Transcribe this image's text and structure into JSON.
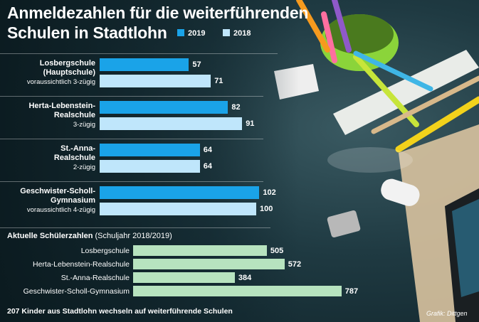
{
  "title_line1": "Anmeldezahlen für die weiterführenden",
  "title_line2": "Schulen in Stadtlohn",
  "colors": {
    "y2019": "#1aa3e8",
    "y2018": "#bfe6fb",
    "students": "#b7e3bf"
  },
  "chart_data": [
    {
      "type": "bar",
      "orientation": "horizontal",
      "series": [
        {
          "name": "2019",
          "values": [
            57,
            82,
            64,
            102
          ]
        },
        {
          "name": "2018",
          "values": [
            71,
            91,
            64,
            100
          ]
        }
      ],
      "categories": [
        {
          "name": "Losbergschule (Hauptschule)",
          "name_lines": [
            "Losbergschule",
            "(Hauptschule)"
          ],
          "note": "voraussichtlich 3-zügig"
        },
        {
          "name": "Herta-Lebenstein-Realschule",
          "name_lines": [
            "Herta-Lebenstein-",
            "Realschule"
          ],
          "note": "3-zügig"
        },
        {
          "name": "St.-Anna-Realschule",
          "name_lines": [
            "St.-Anna-",
            "Realschule"
          ],
          "note": "2-zügig"
        },
        {
          "name": "Geschwister-Scholl-Gymnasium",
          "name_lines": [
            "Geschwister-Scholl-",
            "Gymnasium"
          ],
          "note": "voraussichtlich 4-zügig"
        }
      ],
      "legend": "top"
    },
    {
      "type": "bar",
      "orientation": "horizontal",
      "title": "Aktuelle Schülerzahlen",
      "subtitle": "(Schuljahr 2018/2019)",
      "categories": [
        "Losbergschule",
        "Herta-Lebenstein-Realschule",
        "St.-Anna-Realschule",
        "Geschwister-Scholl-Gymnasium"
      ],
      "values": [
        505,
        572,
        384,
        787
      ]
    }
  ],
  "footer": "207 Kinder aus Stadtlohn wechseln auf weiterführende Schulen",
  "source": "Grafik: Dittgen"
}
